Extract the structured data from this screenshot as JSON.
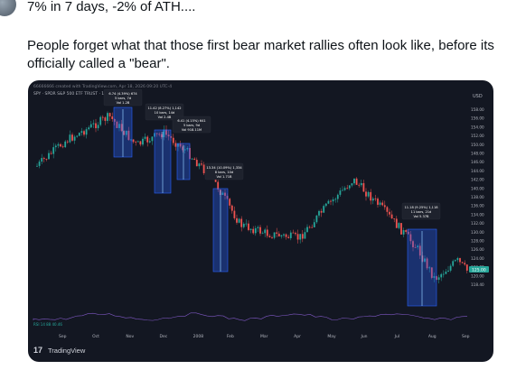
{
  "tweet": {
    "line1": "7% in 7 days, -2% of ATH....",
    "body": "People forget what that those first bear market rallies often look like, before its officially called a \"bear\"."
  },
  "chart_screenshot": {
    "created_line": "66666666 created with TradingView.com, Apr 18, 2026 09:20 UTC-4",
    "symbol_line": "SPY · SPDR S&P 500 ETF TRUST · 1D · NYSE Arca",
    "price_scale_currency": "USD",
    "y_ticks": [
      "158.00",
      "156.00",
      "154.00",
      "152.00",
      "150.00",
      "148.00",
      "146.00",
      "144.00",
      "142.00",
      "140.00",
      "138.00",
      "136.00",
      "134.00",
      "132.00",
      "130.00",
      "128.00",
      "126.00",
      "124.00",
      "122.00",
      "120.00",
      "118.40"
    ],
    "x_ticks": [
      "Sep",
      "Oct",
      "Nov",
      "Dec",
      "2008",
      "Feb",
      "Mar",
      "Apr",
      "May",
      "Jun",
      "Jul",
      "Aug",
      "Sep"
    ],
    "price_badge": "125.00",
    "rsi_label": "RSI 14 88 40.46",
    "logo_text": "TradingView",
    "annotations": [
      {
        "lines": [
          "6.74 (4.39%) 674",
          "5 bars, 7d",
          "Vol 1.2B"
        ]
      },
      {
        "lines": [
          "11.42 (8.27%) 1,142",
          "10 bars, 14d",
          "Vol 2.4B"
        ]
      },
      {
        "lines": [
          "6.41 (4.15%) 641",
          "5 bars, 9d",
          "Vol 918.11M"
        ]
      },
      {
        "lines": [
          "13.34 (10.09%) 1,334",
          "8 bars, 10d",
          "Vol 1.71B"
        ]
      },
      {
        "lines": [
          "11.18 (9.25%) 1,118",
          "11 bars, 21d",
          "Vol 5.37B"
        ]
      }
    ],
    "colors": {
      "bg": "#131722",
      "up": "#26a69a",
      "down": "#ef5350",
      "box": "#2962ff"
    }
  }
}
